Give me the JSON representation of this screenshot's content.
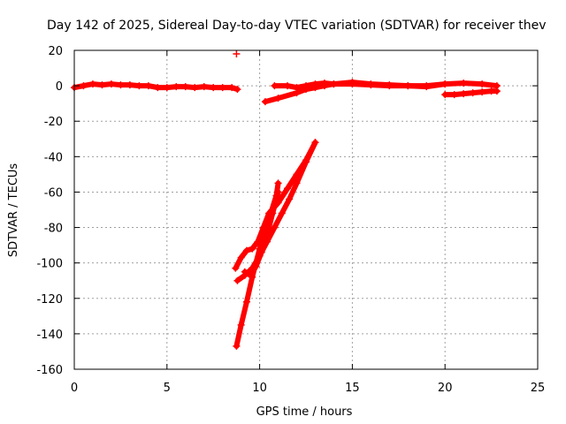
{
  "chart_data": {
    "type": "scatter",
    "title": "Day 142 of 2025, Sidereal Day-to-day VTEC variation (SDTVAR) for receiver thev",
    "xlabel": "GPS time / hours",
    "ylabel": "SDTVAR / TECUs",
    "xlim": [
      0,
      25
    ],
    "ylim": [
      -160,
      20
    ],
    "xticks": [
      "0",
      "5",
      "10",
      "15",
      "20",
      "25"
    ],
    "xtick_values": [
      0,
      5,
      10,
      15,
      20,
      25
    ],
    "yticks": [
      "20",
      "0",
      "-20",
      "-40",
      "-60",
      "-80",
      "-100",
      "-120",
      "-140",
      "-160"
    ],
    "ytick_values": [
      20,
      0,
      -20,
      -40,
      -60,
      -80,
      -100,
      -120,
      -140,
      -160
    ],
    "grid": true,
    "marker": "plus",
    "color": "#ff0000",
    "series": [
      {
        "name": "trace-upper-left",
        "x": [
          0,
          0.5,
          1,
          1.5,
          2,
          2.5,
          3,
          3.5,
          4,
          4.5,
          5,
          5.5,
          6,
          6.5,
          7,
          7.5,
          8,
          8.5,
          8.8
        ],
        "y": [
          -1,
          0,
          1,
          0.5,
          1,
          0.5,
          0.5,
          0,
          0,
          -1,
          -1,
          -0.5,
          -0.5,
          -1,
          -0.5,
          -1,
          -1,
          -1,
          -2
        ]
      },
      {
        "name": "trace-upper-right",
        "x": [
          10.3,
          11,
          12,
          12.5,
          13,
          13.5,
          14,
          15,
          16,
          17,
          18,
          19,
          20,
          21,
          22,
          22.8
        ],
        "y": [
          -9,
          -7,
          -4,
          -2,
          -1,
          0,
          1,
          2,
          1,
          0.5,
          0,
          0,
          1,
          1.5,
          1,
          0
        ]
      },
      {
        "name": "trace-band-13h",
        "x": [
          10.8,
          11.5,
          12,
          12.5,
          13,
          13.5,
          14,
          15,
          16,
          17,
          18,
          19,
          20
        ],
        "y": [
          0,
          0,
          -1,
          0,
          1,
          1.5,
          1,
          1,
          0.5,
          0,
          0,
          -0.5,
          1
        ]
      },
      {
        "name": "trace-upper-right-end",
        "x": [
          20,
          20.5,
          21,
          21.5,
          22,
          22.5,
          22.8
        ],
        "y": [
          -5,
          -5,
          -4.5,
          -4,
          -3.5,
          -3,
          -3
        ]
      },
      {
        "name": "trace-descent-a",
        "x": [
          8.75,
          9,
          9.3,
          9.6,
          10,
          10.3,
          10.6,
          10.9,
          11
        ],
        "y": [
          -147,
          -135,
          -122,
          -108,
          -92,
          -82,
          -72,
          -62,
          -55
        ]
      },
      {
        "name": "trace-descent-b",
        "x": [
          8.7,
          9,
          9.3,
          9.6,
          9.9,
          10.2,
          10.5,
          11,
          11.5,
          12,
          12.5,
          13
        ],
        "y": [
          -103,
          -97,
          -93,
          -92,
          -88,
          -80,
          -72,
          -66,
          -58,
          -50,
          -42,
          -32
        ]
      },
      {
        "name": "trace-descent-c",
        "x": [
          8.8,
          9.2,
          9.6,
          10,
          10.4,
          10.8,
          11.2,
          11.6,
          12,
          12.5,
          13
        ],
        "y": [
          -110,
          -107,
          -103,
          -96,
          -88,
          -80,
          -72,
          -64,
          -55,
          -43,
          -32
        ]
      },
      {
        "name": "trace-descent-d",
        "x": [
          9.2,
          9.5,
          9.8,
          10.1,
          10.4,
          10.7,
          11
        ],
        "y": [
          -105,
          -107,
          -102,
          -94,
          -84,
          -72,
          -60
        ]
      },
      {
        "name": "outlier",
        "x": [
          8.75
        ],
        "y": [
          18
        ]
      }
    ]
  }
}
